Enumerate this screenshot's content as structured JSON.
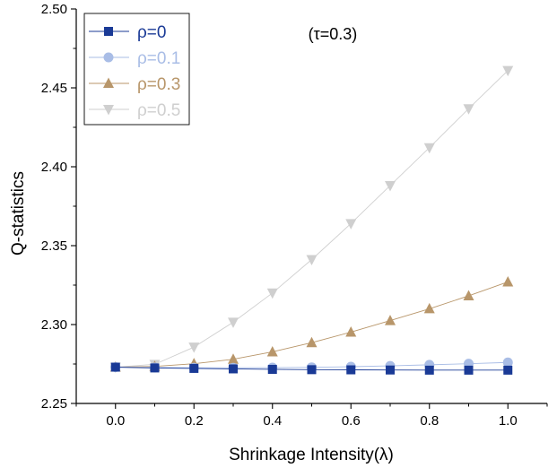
{
  "chart_data": {
    "type": "line",
    "title": "",
    "annotation": "(τ=0.3)",
    "xlabel": "Shrinkage Intensity(λ)",
    "ylabel": "Q-statistics",
    "xlim": [
      -0.1,
      1.1
    ],
    "ylim": [
      2.25,
      2.5
    ],
    "xticks": [
      "0.0",
      "0.2",
      "0.4",
      "0.6",
      "0.8",
      "1.0"
    ],
    "yticks": [
      "2.25",
      "2.30",
      "2.35",
      "2.40",
      "2.45",
      "2.50"
    ],
    "grid": false,
    "legend_position": "top-left",
    "x": [
      0.0,
      0.1,
      0.2,
      0.3,
      0.4,
      0.5,
      0.6,
      0.7,
      0.8,
      0.9,
      1.0
    ],
    "series": [
      {
        "name": "ρ=0",
        "marker": "square",
        "color": "#1a3a96",
        "values": [
          2.273,
          2.2725,
          2.2722,
          2.2719,
          2.2716,
          2.2714,
          2.2713,
          2.2712,
          2.2711,
          2.2711,
          2.2711
        ]
      },
      {
        "name": "ρ=0.1",
        "marker": "circle",
        "color": "#a9bde6",
        "values": [
          2.273,
          2.2728,
          2.2726,
          2.2726,
          2.2727,
          2.2729,
          2.2733,
          2.2738,
          2.2745,
          2.2752,
          2.276
        ]
      },
      {
        "name": "ρ=0.3",
        "marker": "triangle-up",
        "color": "#b8966a",
        "values": [
          2.273,
          2.2735,
          2.2752,
          2.278,
          2.2827,
          2.2885,
          2.2952,
          2.3025,
          2.31,
          2.3182,
          2.327
        ]
      },
      {
        "name": "ρ=0.5",
        "marker": "triangle-down",
        "color": "#cfcfcf",
        "values": [
          2.273,
          2.2748,
          2.2857,
          2.3015,
          2.32,
          2.3412,
          2.364,
          2.3881,
          2.4121,
          2.4368,
          2.461
        ]
      }
    ]
  }
}
